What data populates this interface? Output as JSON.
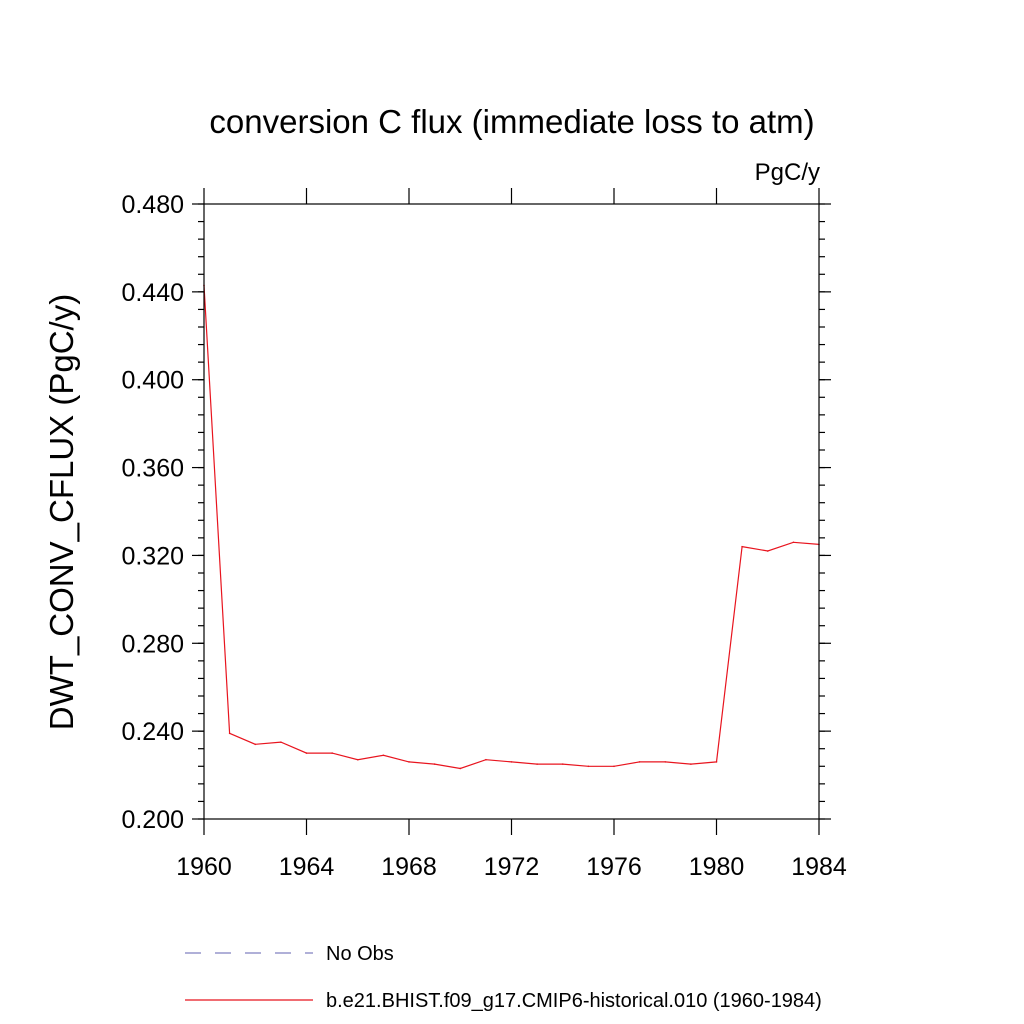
{
  "chart_data": {
    "type": "line",
    "title": "conversion C flux (immediate loss to atm)",
    "units_label": "PgC/y",
    "xlabel": "",
    "ylabel": "DWT_CONV_CFLUX  (PgC/y)",
    "xlim": [
      1960,
      1984
    ],
    "ylim": [
      0.2,
      0.48
    ],
    "x_ticks": [
      1960,
      1964,
      1968,
      1972,
      1976,
      1980,
      1984
    ],
    "x_tick_labels": [
      "1960",
      "1964",
      "1968",
      "1972",
      "1976",
      "1980",
      "1984"
    ],
    "y_ticks": [
      0.2,
      0.24,
      0.28,
      0.32,
      0.36,
      0.4,
      0.44,
      0.48
    ],
    "y_tick_labels": [
      "0.200",
      "0.240",
      "0.280",
      "0.320",
      "0.360",
      "0.400",
      "0.440",
      "0.480"
    ],
    "grid": false,
    "legend_position": "bottom",
    "series": [
      {
        "name": "No Obs",
        "color": "#8080c0",
        "dash": "dashed",
        "x": [],
        "values": []
      },
      {
        "name": "b.e21.BHIST.f09_g17.CMIP6-historical.010 (1960-1984)",
        "color": "#e8141e",
        "dash": "solid",
        "x": [
          1960,
          1961,
          1962,
          1963,
          1964,
          1965,
          1966,
          1967,
          1968,
          1969,
          1970,
          1971,
          1972,
          1973,
          1974,
          1975,
          1976,
          1977,
          1978,
          1979,
          1980,
          1981,
          1982,
          1983,
          1984
        ],
        "values": [
          0.443,
          0.239,
          0.234,
          0.235,
          0.23,
          0.23,
          0.227,
          0.229,
          0.226,
          0.225,
          0.223,
          0.227,
          0.226,
          0.225,
          0.225,
          0.224,
          0.224,
          0.226,
          0.226,
          0.225,
          0.226,
          0.324,
          0.322,
          0.326,
          0.325
        ]
      }
    ]
  }
}
